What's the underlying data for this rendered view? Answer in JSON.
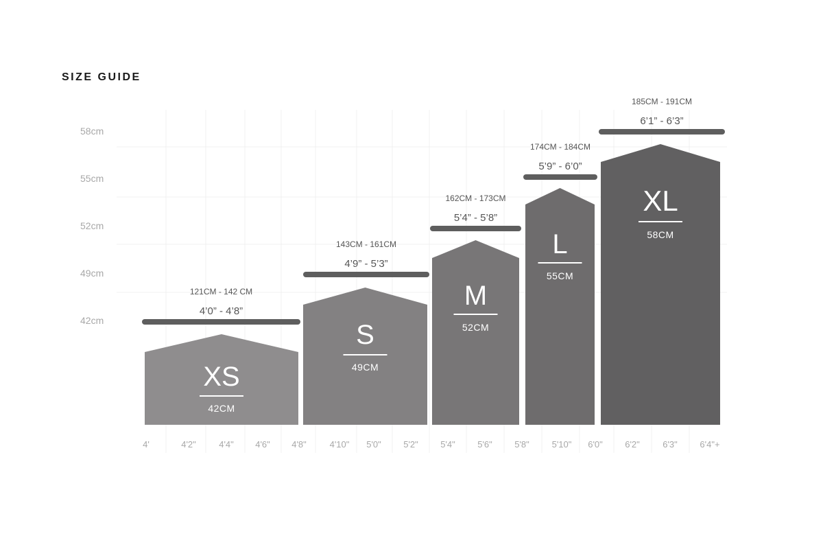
{
  "title": "SIZE GUIDE",
  "chart_data": {
    "type": "bar",
    "title": "SIZE GUIDE",
    "y_tick_labels": [
      "58cm",
      "55cm",
      "52cm",
      "49cm",
      "42cm"
    ],
    "x_tick_labels": [
      "4'",
      "4'2\"",
      "4'4\"",
      "4'6\"",
      "4'8\"",
      "4'10\"",
      "5'0\"",
      "5'2\"",
      "5'4\"",
      "5'6\"",
      "5'8\"",
      "5'10\"",
      "6'0\"",
      "6'2\"",
      "6'3\"",
      "6'4\"+"
    ],
    "grid": true,
    "series": [
      {
        "size": "XS",
        "chest_label": "42CM",
        "value_cm": 42,
        "height_cm": "121CM - 142 CM",
        "height_ft": "4’0” - 4’8”",
        "color": "#8f8d8e"
      },
      {
        "size": "S",
        "chest_label": "49CM",
        "value_cm": 49,
        "height_cm": "143CM - 161CM",
        "height_ft": "4’9” - 5’3”",
        "color": "#838182"
      },
      {
        "size": "M",
        "chest_label": "52CM",
        "value_cm": 52,
        "height_cm": "162CM - 173CM",
        "height_ft": "5’4” - 5’8”",
        "color": "#787677"
      },
      {
        "size": "L",
        "chest_label": "55CM",
        "value_cm": 55,
        "height_cm": "174CM - 184CM",
        "height_ft": "5’9” - 6’0”",
        "color": "#6e6c6d"
      },
      {
        "size": "XL",
        "chest_label": "58CM",
        "value_cm": 58,
        "height_cm": "185CM - 191CM",
        "height_ft": "6’1” - 6’3”",
        "color": "#616061"
      }
    ],
    "range_bar_color": "#5e5e5e"
  }
}
